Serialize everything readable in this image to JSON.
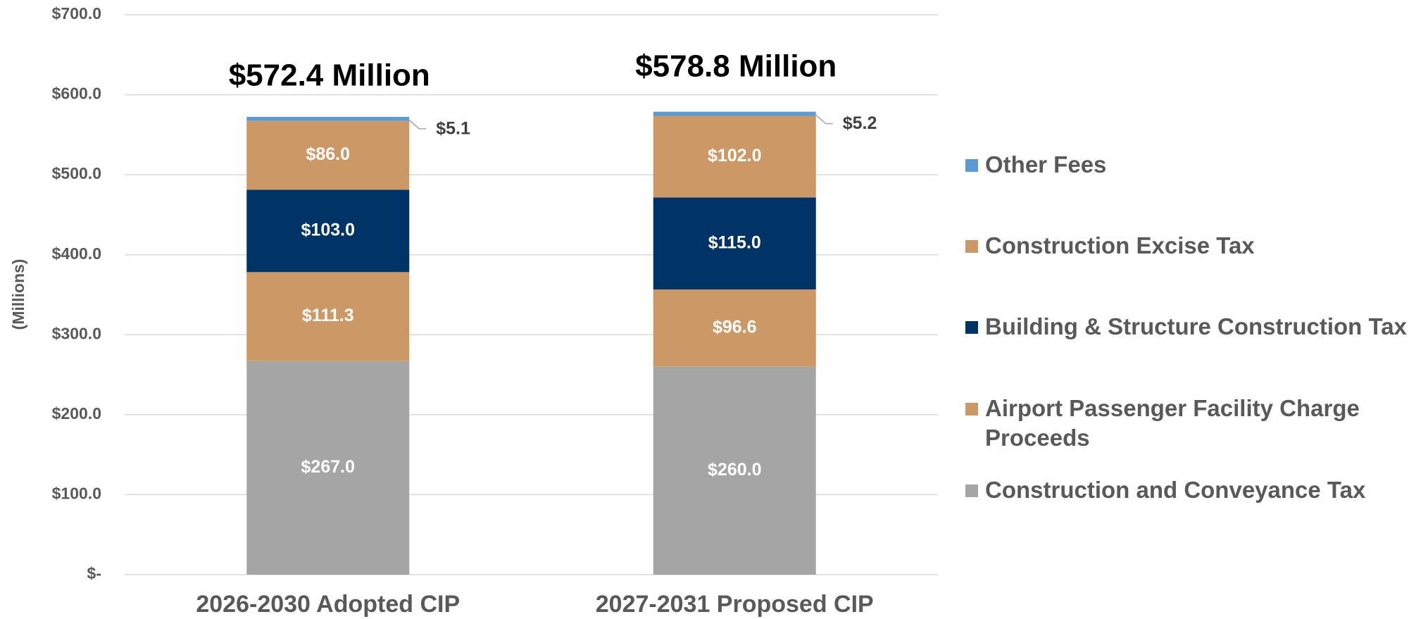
{
  "chart_data": {
    "type": "stacked_bar",
    "y_label": "(Millions)",
    "categories": [
      "2026-2030 Adopted CIP",
      "2027-2031 Proposed CIP"
    ],
    "annotations": [
      "$572.4  Million",
      "$578.8  Million"
    ],
    "series": [
      {
        "name": "Construction and Conveyance Tax",
        "color": "#a5a5a5",
        "values": [
          267.0,
          260.0
        ],
        "value_labels": [
          "$267.0",
          "$260.0"
        ]
      },
      {
        "name": "Airport Passenger Facility Charge Proceeds",
        "color": "#cc9966",
        "values": [
          111.3,
          96.6
        ],
        "value_labels": [
          "$111.3",
          "$96.6"
        ]
      },
      {
        "name": "Building & Structure Construction Tax",
        "color": "#003366",
        "values": [
          103.0,
          115.0
        ],
        "value_labels": [
          "$103.0",
          "$115.0"
        ]
      },
      {
        "name": "Construction Excise Tax",
        "color": "#cc9966",
        "values": [
          86.0,
          102.0
        ],
        "value_labels": [
          "$86.0",
          "$102.0"
        ]
      },
      {
        "name": "Other Fees",
        "color": "#5b9bd5",
        "values": [
          5.1,
          5.2
        ],
        "value_labels": [
          "$5.1",
          "$5.2"
        ]
      }
    ],
    "ylim": [
      0,
      700
    ],
    "yticks": [
      {
        "value": 0,
        "label": "$-"
      },
      {
        "value": 100,
        "label": "$100.0"
      },
      {
        "value": 200,
        "label": "$200.0"
      },
      {
        "value": 300,
        "label": "$300.0"
      },
      {
        "value": 400,
        "label": "$400.0"
      },
      {
        "value": 500,
        "label": "$500.0"
      },
      {
        "value": 600,
        "label": "$600.0"
      },
      {
        "value": 700,
        "label": "$700.0"
      }
    ],
    "grid": true,
    "legend": "right"
  }
}
